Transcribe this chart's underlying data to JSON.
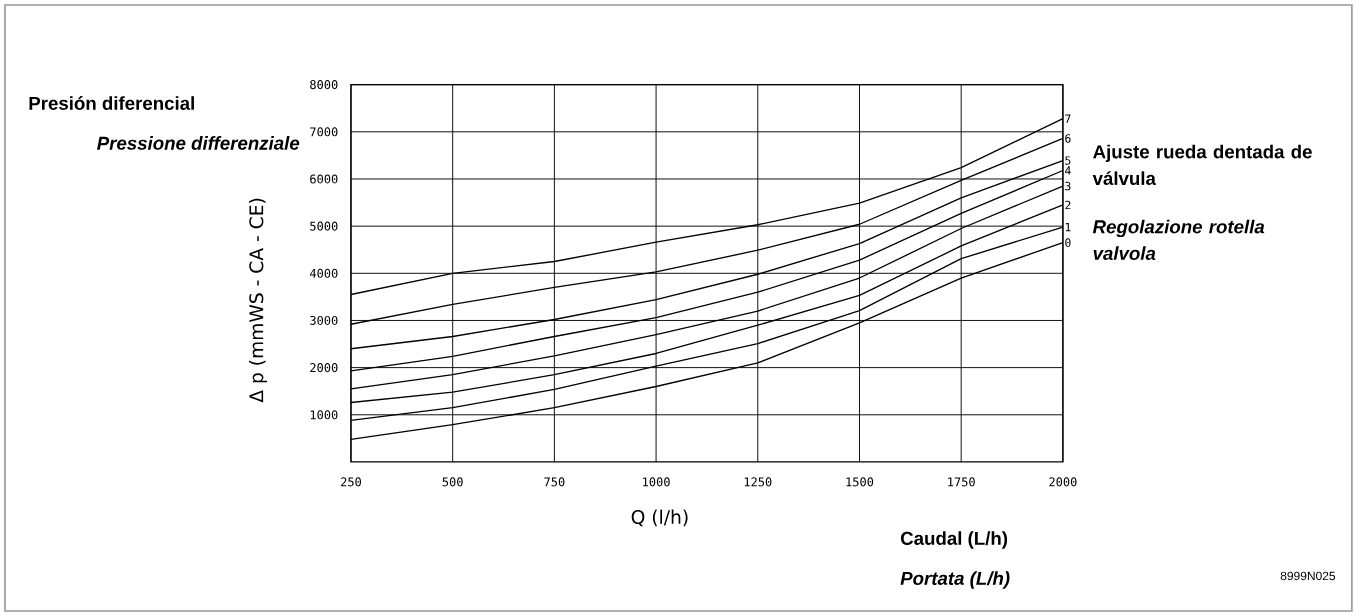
{
  "chart_data": {
    "type": "line",
    "xlabel": "Q (l/h)",
    "ylabel": "Δ p (mmWS - CA - CE)",
    "legend_title": "Ajuste rueda dentada de válvula",
    "subtitle": "Regolazione rotella valvola",
    "annotations": [
      "Presión diferencial",
      "Pressione differenziale",
      "Caudal (L/h)",
      "Portata (L/h)",
      "8999N025"
    ],
    "x": [
      250,
      500,
      750,
      1000,
      1250,
      1500,
      1750,
      2000
    ],
    "series": [
      {
        "name": "0",
        "color": "#000000",
        "values": [
          480,
          790,
          1150,
          1600,
          2100,
          2950,
          3900,
          4650
        ]
      },
      {
        "name": "1",
        "color": "#000000",
        "values": [
          880,
          1150,
          1540,
          2030,
          2510,
          3210,
          4310,
          4980
        ]
      },
      {
        "name": "2",
        "color": "#000000",
        "values": [
          1260,
          1480,
          1850,
          2300,
          2900,
          3530,
          4580,
          5450
        ]
      },
      {
        "name": "3",
        "color": "#000000",
        "values": [
          1550,
          1850,
          2250,
          2700,
          3200,
          3900,
          4950,
          5850
        ]
      },
      {
        "name": "4",
        "color": "#000000",
        "values": [
          1930,
          2240,
          2660,
          3060,
          3600,
          4280,
          5270,
          6180
        ]
      },
      {
        "name": "5",
        "color": "#000000",
        "values": [
          2400,
          2660,
          3020,
          3440,
          3980,
          4630,
          5600,
          6390
        ]
      },
      {
        "name": "6",
        "color": "#000000",
        "values": [
          2920,
          3340,
          3700,
          4030,
          4490,
          5040,
          5970,
          6860
        ]
      },
      {
        "name": "7",
        "color": "#000000",
        "values": [
          3550,
          4000,
          4250,
          4660,
          5030,
          5490,
          6240,
          7280
        ]
      }
    ],
    "xlim": [
      250,
      2000
    ],
    "ylim": [
      0,
      8000
    ],
    "xticks": [
      250,
      500,
      750,
      1000,
      1250,
      1500,
      1750,
      2000
    ],
    "yticks": [
      1000,
      2000,
      3000,
      4000,
      5000,
      6000,
      7000,
      8000
    ],
    "grid": true,
    "marker": "none",
    "line_style": "solid"
  }
}
